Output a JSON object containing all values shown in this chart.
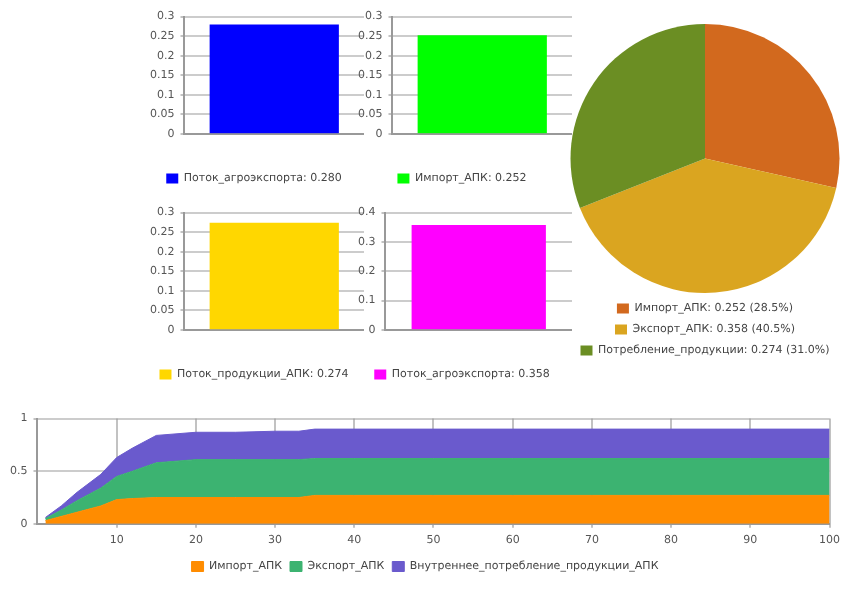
{
  "chart_data": [
    {
      "type": "bar",
      "categories": [
        null
      ],
      "series": [
        {
          "name": "Поток_агроэкспорта: 0.280",
          "color": "#0000ff",
          "values": [
            0.28
          ]
        }
      ],
      "ylim": [
        0,
        0.3
      ],
      "yticks": [
        0,
        0.05,
        0.1,
        0.15,
        0.2,
        0.25,
        0.3
      ],
      "grid": "y",
      "legend": "bottom"
    },
    {
      "type": "bar",
      "categories": [
        null
      ],
      "series": [
        {
          "name": "Импорт_АПК: 0.252",
          "color": "#00ff00",
          "values": [
            0.252
          ]
        }
      ],
      "ylim": [
        0,
        0.3
      ],
      "yticks": [
        0,
        0.05,
        0.1,
        0.15,
        0.2,
        0.25,
        0.3
      ],
      "grid": "y",
      "legend": "bottom"
    },
    {
      "type": "bar",
      "categories": [
        null
      ],
      "series": [
        {
          "name": "Поток_продукции_АПК: 0.274",
          "color": "#ffd700",
          "values": [
            0.274
          ]
        }
      ],
      "ylim": [
        0,
        0.3
      ],
      "yticks": [
        0,
        0.05,
        0.1,
        0.15,
        0.2,
        0.25,
        0.3
      ],
      "grid": "y",
      "legend": "bottom"
    },
    {
      "type": "bar",
      "categories": [
        null
      ],
      "series": [
        {
          "name": "Поток_агроэкспорта: 0.358",
          "color": "#ff00ff",
          "values": [
            0.358
          ]
        }
      ],
      "ylim": [
        0,
        0.4
      ],
      "yticks": [
        0,
        0.1,
        0.2,
        0.3,
        0.4
      ],
      "grid": "y",
      "legend": "bottom"
    },
    {
      "type": "pie",
      "categories": [
        "Импорт_АПК: 0.252 (28.5%)",
        "Экспорт_АПК: 0.358 (40.5%)",
        "Потребление_продукции: 0.274 (31.0%)"
      ],
      "values": [
        0.252,
        0.358,
        0.274
      ],
      "colors": [
        "#d2691e",
        "#daa520",
        "#6b8e23"
      ],
      "legend": "bottom"
    },
    {
      "type": "area",
      "stacked": true,
      "x": [
        1,
        3,
        5,
        8,
        10,
        12,
        15,
        20,
        25,
        30,
        33,
        35,
        40,
        50,
        60,
        70,
        80,
        90,
        100
      ],
      "series": [
        {
          "name": "Импорт_АПК",
          "color": "#ff8c00",
          "values": [
            0.03,
            0.07,
            0.11,
            0.17,
            0.23,
            0.24,
            0.25,
            0.25,
            0.25,
            0.25,
            0.25,
            0.27,
            0.27,
            0.27,
            0.27,
            0.27,
            0.27,
            0.27,
            0.27
          ]
        },
        {
          "name": "Экспорт_АПК",
          "color": "#3cb371",
          "values": [
            0.02,
            0.06,
            0.11,
            0.17,
            0.22,
            0.26,
            0.33,
            0.36,
            0.36,
            0.36,
            0.36,
            0.35,
            0.35,
            0.35,
            0.35,
            0.35,
            0.35,
            0.35,
            0.35
          ]
        },
        {
          "name": "Внутреннее_потребление_продукции_АПК",
          "color": "#6a5acd",
          "values": [
            0.01,
            0.04,
            0.08,
            0.13,
            0.18,
            0.22,
            0.26,
            0.26,
            0.26,
            0.27,
            0.27,
            0.28,
            0.28,
            0.28,
            0.28,
            0.28,
            0.28,
            0.28,
            0.28
          ]
        }
      ],
      "xlim": [
        0,
        100
      ],
      "xticks": [
        10,
        20,
        30,
        40,
        50,
        60,
        70,
        80,
        90,
        100
      ],
      "ylim": [
        0,
        1
      ],
      "yticks": [
        0,
        0.5,
        1
      ],
      "grid": true,
      "legend": "bottom"
    }
  ]
}
